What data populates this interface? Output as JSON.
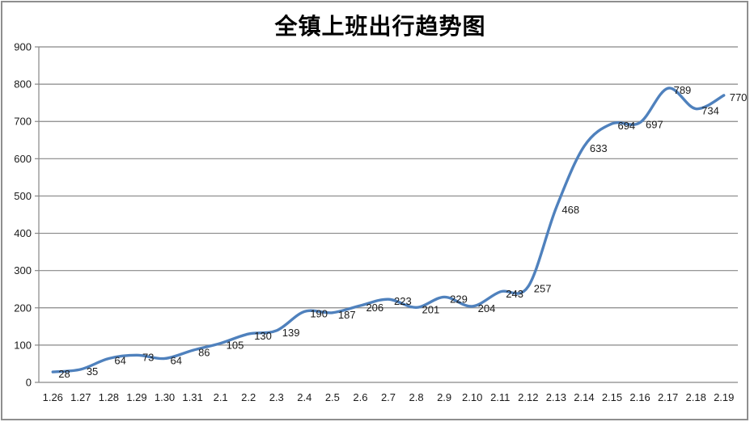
{
  "chart_data": {
    "type": "line",
    "title": "全镇上班出行趋势图",
    "xlabel": "",
    "ylabel": "",
    "categories": [
      "1.26",
      "1.27",
      "1.28",
      "1.29",
      "1.30",
      "1.31",
      "2.1",
      "2.2",
      "2.3",
      "2.4",
      "2.5",
      "2.6",
      "2.7",
      "2.8",
      "2.9",
      "2.10",
      "2.11",
      "2.12",
      "2.13",
      "2.14",
      "2.15",
      "2.16",
      "2.17",
      "2.18",
      "2.19"
    ],
    "values": [
      28,
      35,
      64,
      73,
      64,
      86,
      105,
      130,
      139,
      190,
      187,
      206,
      223,
      201,
      229,
      204,
      243,
      257,
      468,
      633,
      694,
      697,
      789,
      734,
      770
    ],
    "ylim": [
      0,
      900
    ],
    "yticks": [
      0,
      100,
      200,
      300,
      400,
      500,
      600,
      700,
      800,
      900
    ],
    "grid": true,
    "legend": "none",
    "smoothed": true,
    "show_data_labels": true,
    "colors": {
      "line": "#4F81BD",
      "gridline": "#878787",
      "axis": "#878787",
      "text": "#1A1A1A",
      "outer_border": "#8E8E8E"
    }
  }
}
